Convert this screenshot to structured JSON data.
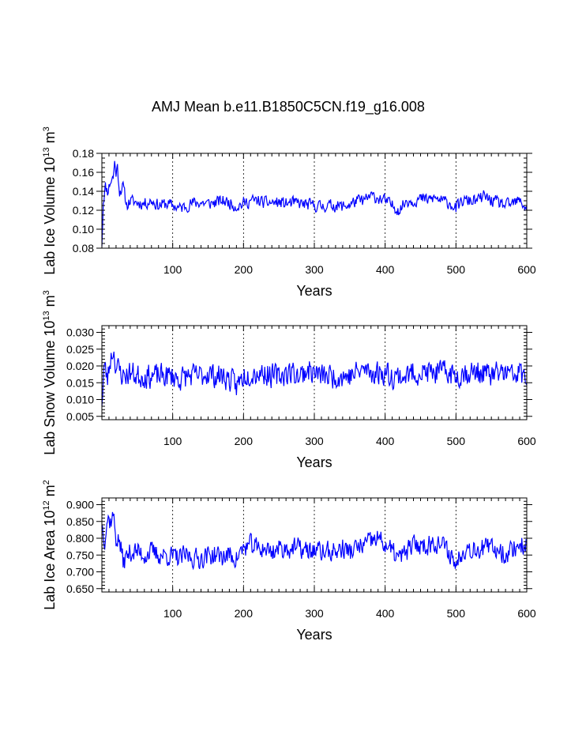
{
  "figure": {
    "title": "AMJ Mean b.e11.B1850C5CN.f19_g16.008"
  },
  "style": {
    "line_color": "#0000ff",
    "axis_color": "#000000",
    "grid_color": "#000000",
    "background": "#ffffff"
  },
  "chart_data": [
    {
      "type": "line",
      "ylabel": {
        "main": "Lab Ice Volume 10",
        "exp": "13",
        "unit": " m",
        "unit_exp": "3"
      },
      "xlabel": "Years",
      "xlim": [
        0,
        600
      ],
      "ylim": [
        0.08,
        0.18
      ],
      "xticks": [
        100,
        200,
        300,
        400,
        500,
        600
      ],
      "yticks": [
        0.08,
        0.1,
        0.12,
        0.14,
        0.16,
        0.18
      ],
      "ytick_labels": [
        "0.08",
        "0.10",
        "0.12",
        "0.14",
        "0.16",
        "0.18"
      ],
      "yminor_step": 0.005,
      "vgrid": [
        100,
        200,
        300,
        400,
        500
      ],
      "series": [
        {
          "name": "Lab Ice Volume",
          "anchors": [
            [
              0,
              0.082
            ],
            [
              2,
              0.13
            ],
            [
              5,
              0.145
            ],
            [
              8,
              0.14
            ],
            [
              12,
              0.15
            ],
            [
              16,
              0.155
            ],
            [
              18,
              0.17
            ],
            [
              20,
              0.16
            ],
            [
              22,
              0.165
            ],
            [
              25,
              0.14
            ],
            [
              30,
              0.145
            ],
            [
              35,
              0.125
            ],
            [
              40,
              0.13
            ],
            [
              50,
              0.128
            ],
            [
              60,
              0.127
            ],
            [
              70,
              0.13
            ],
            [
              80,
              0.125
            ],
            [
              90,
              0.127
            ],
            [
              100,
              0.125
            ],
            [
              110,
              0.122
            ],
            [
              120,
              0.125
            ],
            [
              130,
              0.128
            ],
            [
              140,
              0.128
            ],
            [
              150,
              0.127
            ],
            [
              160,
              0.128
            ],
            [
              170,
              0.13
            ],
            [
              180,
              0.128
            ],
            [
              190,
              0.124
            ],
            [
              200,
              0.127
            ],
            [
              210,
              0.13
            ],
            [
              220,
              0.13
            ],
            [
              230,
              0.128
            ],
            [
              240,
              0.128
            ],
            [
              250,
              0.128
            ],
            [
              260,
              0.127
            ],
            [
              270,
              0.128
            ],
            [
              280,
              0.127
            ],
            [
              290,
              0.126
            ],
            [
              300,
              0.125
            ],
            [
              310,
              0.124
            ],
            [
              320,
              0.125
            ],
            [
              330,
              0.125
            ],
            [
              340,
              0.124
            ],
            [
              350,
              0.126
            ],
            [
              360,
              0.13
            ],
            [
              370,
              0.13
            ],
            [
              380,
              0.135
            ],
            [
              390,
              0.133
            ],
            [
              400,
              0.13
            ],
            [
              410,
              0.125
            ],
            [
              420,
              0.12
            ],
            [
              430,
              0.13
            ],
            [
              440,
              0.13
            ],
            [
              450,
              0.132
            ],
            [
              460,
              0.131
            ],
            [
              470,
              0.133
            ],
            [
              480,
              0.13
            ],
            [
              490,
              0.128
            ],
            [
              500,
              0.122
            ],
            [
              510,
              0.13
            ],
            [
              520,
              0.13
            ],
            [
              530,
              0.13
            ],
            [
              540,
              0.135
            ],
            [
              550,
              0.13
            ],
            [
              560,
              0.128
            ],
            [
              570,
              0.125
            ],
            [
              580,
              0.127
            ],
            [
              590,
              0.13
            ],
            [
              600,
              0.122
            ]
          ],
          "noise_amplitude": 0.008,
          "noise_seed": 11
        }
      ]
    },
    {
      "type": "line",
      "ylabel": {
        "main": "Lab Snow Volume 10",
        "exp": "13",
        "unit": " m",
        "unit_exp": "3"
      },
      "xlabel": "Years",
      "xlim": [
        0,
        600
      ],
      "ylim": [
        0.004,
        0.032
      ],
      "xticks": [
        100,
        200,
        300,
        400,
        500,
        600
      ],
      "yticks": [
        0.005,
        0.01,
        0.015,
        0.02,
        0.025,
        0.03
      ],
      "ytick_labels": [
        "0.005",
        "0.010",
        "0.015",
        "0.020",
        "0.025",
        "0.030"
      ],
      "yminor_step": 0.001,
      "vgrid": [
        100,
        200,
        300,
        400,
        500
      ],
      "series": [
        {
          "name": "Lab Snow Volume",
          "anchors": [
            [
              0,
              0.008
            ],
            [
              3,
              0.02
            ],
            [
              8,
              0.016
            ],
            [
              12,
              0.022
            ],
            [
              16,
              0.025
            ],
            [
              20,
              0.02
            ],
            [
              30,
              0.017
            ],
            [
              40,
              0.018
            ],
            [
              50,
              0.017
            ],
            [
              60,
              0.017
            ],
            [
              70,
              0.017
            ],
            [
              80,
              0.017
            ],
            [
              90,
              0.017
            ],
            [
              100,
              0.017
            ],
            [
              110,
              0.016
            ],
            [
              120,
              0.017
            ],
            [
              130,
              0.017
            ],
            [
              140,
              0.017
            ],
            [
              150,
              0.018
            ],
            [
              160,
              0.017
            ],
            [
              170,
              0.017
            ],
            [
              180,
              0.016
            ],
            [
              190,
              0.014
            ],
            [
              200,
              0.017
            ],
            [
              210,
              0.018
            ],
            [
              220,
              0.018
            ],
            [
              230,
              0.018
            ],
            [
              240,
              0.017
            ],
            [
              250,
              0.017
            ],
            [
              260,
              0.018
            ],
            [
              270,
              0.018
            ],
            [
              280,
              0.017
            ],
            [
              290,
              0.019
            ],
            [
              300,
              0.018
            ],
            [
              310,
              0.017
            ],
            [
              320,
              0.017
            ],
            [
              330,
              0.017
            ],
            [
              340,
              0.017
            ],
            [
              350,
              0.017
            ],
            [
              360,
              0.018
            ],
            [
              370,
              0.019
            ],
            [
              380,
              0.018
            ],
            [
              390,
              0.018
            ],
            [
              400,
              0.018
            ],
            [
              410,
              0.017
            ],
            [
              420,
              0.017
            ],
            [
              430,
              0.017
            ],
            [
              440,
              0.018
            ],
            [
              450,
              0.018
            ],
            [
              460,
              0.018
            ],
            [
              470,
              0.018
            ],
            [
              480,
              0.018
            ],
            [
              490,
              0.018
            ],
            [
              500,
              0.017
            ],
            [
              510,
              0.018
            ],
            [
              520,
              0.018
            ],
            [
              530,
              0.018
            ],
            [
              540,
              0.018
            ],
            [
              550,
              0.017
            ],
            [
              560,
              0.018
            ],
            [
              570,
              0.018
            ],
            [
              580,
              0.017
            ],
            [
              590,
              0.018
            ],
            [
              600,
              0.016
            ]
          ],
          "noise_amplitude": 0.0045,
          "noise_seed": 23
        }
      ]
    },
    {
      "type": "line",
      "ylabel": {
        "main": "Lab Ice Area 10",
        "exp": "12",
        "unit": " m",
        "unit_exp": "2"
      },
      "xlabel": "Years",
      "xlim": [
        0,
        600
      ],
      "ylim": [
        0.64,
        0.92
      ],
      "xticks": [
        100,
        200,
        300,
        400,
        500,
        600
      ],
      "yticks": [
        0.65,
        0.7,
        0.75,
        0.8,
        0.85,
        0.9
      ],
      "ytick_labels": [
        "0.650",
        "0.700",
        "0.750",
        "0.800",
        "0.850",
        "0.900"
      ],
      "yminor_step": 0.01,
      "vgrid": [
        100,
        200,
        300,
        400,
        500
      ],
      "series": [
        {
          "name": "Lab Ice Area",
          "anchors": [
            [
              0,
              0.84
            ],
            [
              4,
              0.8
            ],
            [
              8,
              0.86
            ],
            [
              12,
              0.85
            ],
            [
              16,
              0.87
            ],
            [
              20,
              0.8
            ],
            [
              25,
              0.79
            ],
            [
              30,
              0.73
            ],
            [
              40,
              0.76
            ],
            [
              50,
              0.76
            ],
            [
              60,
              0.75
            ],
            [
              70,
              0.76
            ],
            [
              80,
              0.75
            ],
            [
              90,
              0.75
            ],
            [
              100,
              0.745
            ],
            [
              110,
              0.74
            ],
            [
              120,
              0.75
            ],
            [
              130,
              0.74
            ],
            [
              140,
              0.74
            ],
            [
              150,
              0.75
            ],
            [
              160,
              0.75
            ],
            [
              170,
              0.745
            ],
            [
              180,
              0.75
            ],
            [
              190,
              0.74
            ],
            [
              200,
              0.77
            ],
            [
              210,
              0.78
            ],
            [
              220,
              0.77
            ],
            [
              230,
              0.77
            ],
            [
              240,
              0.76
            ],
            [
              250,
              0.77
            ],
            [
              260,
              0.77
            ],
            [
              270,
              0.77
            ],
            [
              280,
              0.77
            ],
            [
              290,
              0.76
            ],
            [
              300,
              0.765
            ],
            [
              310,
              0.76
            ],
            [
              320,
              0.76
            ],
            [
              330,
              0.76
            ],
            [
              340,
              0.77
            ],
            [
              350,
              0.76
            ],
            [
              360,
              0.77
            ],
            [
              370,
              0.78
            ],
            [
              380,
              0.79
            ],
            [
              390,
              0.8
            ],
            [
              400,
              0.78
            ],
            [
              410,
              0.76
            ],
            [
              420,
              0.74
            ],
            [
              430,
              0.76
            ],
            [
              440,
              0.78
            ],
            [
              450,
              0.78
            ],
            [
              460,
              0.78
            ],
            [
              470,
              0.79
            ],
            [
              480,
              0.78
            ],
            [
              490,
              0.76
            ],
            [
              500,
              0.72
            ],
            [
              510,
              0.77
            ],
            [
              520,
              0.77
            ],
            [
              530,
              0.77
            ],
            [
              540,
              0.77
            ],
            [
              550,
              0.77
            ],
            [
              560,
              0.77
            ],
            [
              570,
              0.75
            ],
            [
              580,
              0.77
            ],
            [
              590,
              0.78
            ],
            [
              600,
              0.78
            ]
          ],
          "noise_amplitude": 0.038,
          "noise_seed": 37
        }
      ]
    }
  ]
}
